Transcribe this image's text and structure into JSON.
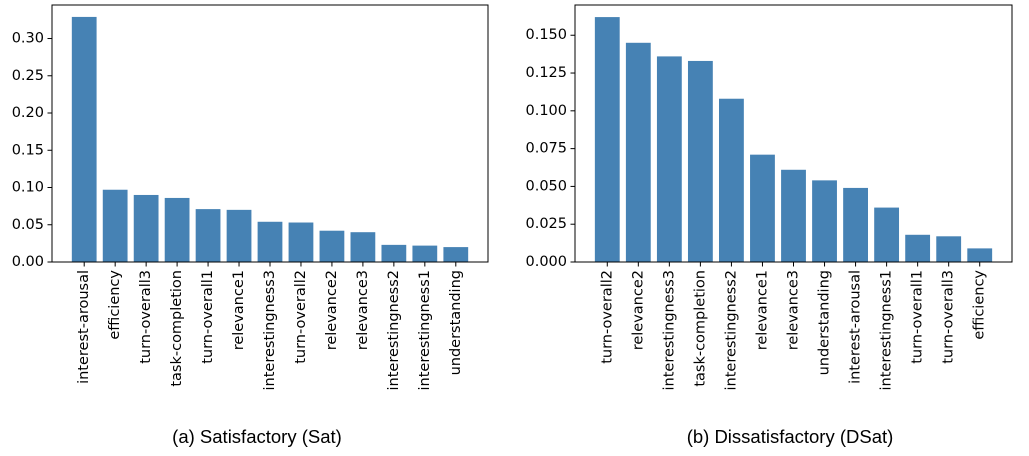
{
  "chart_data": [
    {
      "type": "bar",
      "caption": "(a) Satisfactory (Sat)",
      "categories": [
        "interest-arousal",
        "efficiency",
        "turn-overall3",
        "task-completion",
        "turn-overall1",
        "relevance1",
        "interestingness3",
        "turn-overall2",
        "relevance2",
        "relevance3",
        "interestingness2",
        "interestingness1",
        "understanding"
      ],
      "values": [
        0.329,
        0.097,
        0.09,
        0.086,
        0.071,
        0.07,
        0.054,
        0.053,
        0.042,
        0.04,
        0.023,
        0.022,
        0.02
      ],
      "ylim": [
        0,
        0.345
      ],
      "yticks": [
        0,
        0.05,
        0.1,
        0.15,
        0.2,
        0.25,
        0.3
      ],
      "ytick_labels": [
        "0.00",
        "0.05",
        "0.10",
        "0.15",
        "0.20",
        "0.25",
        "0.30"
      ],
      "grid": false,
      "legend": false,
      "color": "#4682b4"
    },
    {
      "type": "bar",
      "caption": "(b) Dissatisfactory (DSat)",
      "categories": [
        "turn-overall2",
        "relevance2",
        "interestingness3",
        "task-completion",
        "interestingness2",
        "relevance1",
        "relevance3",
        "understanding",
        "interest-arousal",
        "interestingness1",
        "turn-overall1",
        "turn-overall3",
        "efficiency"
      ],
      "values": [
        0.162,
        0.145,
        0.136,
        0.133,
        0.108,
        0.071,
        0.061,
        0.054,
        0.049,
        0.036,
        0.018,
        0.017,
        0.009
      ],
      "ylim": [
        0,
        0.17
      ],
      "yticks": [
        0,
        0.025,
        0.05,
        0.075,
        0.1,
        0.125,
        0.15
      ],
      "ytick_labels": [
        "0.000",
        "0.025",
        "0.050",
        "0.075",
        "0.100",
        "0.125",
        "0.150"
      ],
      "grid": false,
      "legend": false,
      "color": "#4682b4"
    }
  ]
}
